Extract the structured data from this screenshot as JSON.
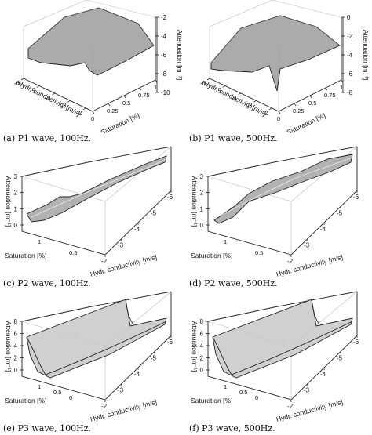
{
  "chart_data": [
    {
      "type": "surface3d",
      "caption": "(a)  P1 wave, 100Hz.",
      "axes": {
        "conductivity": {
          "label": "Hydr. conductivity [m/s]",
          "ticks": [
            "-6",
            "-5",
            "-4",
            "-3",
            "-2"
          ]
        },
        "saturation": {
          "label": "Saturation [%]",
          "ticks": [
            "0",
            "0.25",
            "0.5",
            "0.75",
            "1"
          ]
        },
        "attenuation": {
          "label": "Attenuation [m⁻¹]",
          "ticks": [
            "-2",
            "-4",
            "-6",
            "-8",
            "-10"
          ],
          "range": [
            -10,
            -2
          ]
        }
      }
    },
    {
      "type": "surface3d",
      "caption": "(b)  P1 wave, 500Hz.",
      "axes": {
        "conductivity": {
          "label": "Hydr. conductivity [m/s]",
          "ticks": [
            "-6",
            "-5",
            "-4",
            "-3",
            "-2"
          ]
        },
        "saturation": {
          "label": "Saturation [%]",
          "ticks": [
            "0",
            "0.25",
            "0.5",
            "0.75",
            "1"
          ]
        },
        "attenuation": {
          "label": "Attenuation [m⁻¹]",
          "ticks": [
            "0",
            "-2",
            "-4",
            "-6",
            "-8"
          ],
          "range": [
            -8,
            0
          ]
        }
      }
    },
    {
      "type": "surface3d",
      "caption": "(c)  P2 wave, 100Hz.",
      "axes": {
        "conductivity": {
          "label": "Hydr. conductivity [m/s]",
          "ticks": [
            "-2",
            "-3",
            "-4",
            "-5",
            "-6"
          ]
        },
        "saturation": {
          "label": "Saturation [%]",
          "ticks": [
            "1",
            "0.5"
          ]
        },
        "attenuation": {
          "label": "Attenuation [m⁻¹]",
          "ticks": [
            "3",
            "2",
            "1",
            "0"
          ],
          "range": [
            0,
            3
          ]
        }
      }
    },
    {
      "type": "surface3d",
      "caption": "(d)  P2 wave, 500Hz.",
      "axes": {
        "conductivity": {
          "label": "Hydr. conductivity [m/s]",
          "ticks": [
            "-2",
            "-3",
            "-4",
            "-5",
            "-6"
          ]
        },
        "saturation": {
          "label": "Saturation [%]",
          "ticks": [
            "1",
            "0.5"
          ]
        },
        "attenuation": {
          "label": "Attenuation [m⁻¹]",
          "ticks": [
            "3",
            "2",
            "1",
            "0"
          ],
          "range": [
            0,
            3
          ]
        }
      }
    },
    {
      "type": "surface3d",
      "caption": "(e)  P3 wave, 100Hz.",
      "axes": {
        "conductivity": {
          "label": "Hydr. conductivity [m/s]",
          "ticks": [
            "-2",
            "-3",
            "-4",
            "-5",
            "-6"
          ]
        },
        "saturation": {
          "label": "Saturation [%]",
          "ticks": [
            "1",
            "0.5",
            "0"
          ]
        },
        "attenuation": {
          "label": "Attenuation [m⁻¹]",
          "ticks": [
            "8",
            "6",
            "4",
            "2",
            "0"
          ],
          "range": [
            0,
            8
          ]
        }
      }
    },
    {
      "type": "surface3d",
      "caption": "(f)  P3 wave, 500Hz.",
      "axes": {
        "conductivity": {
          "label": "Hydr. conductivity [m/s]",
          "ticks": [
            "-2",
            "-3",
            "-4",
            "-5",
            "-6"
          ]
        },
        "saturation": {
          "label": "Saturation [%]",
          "ticks": [
            "1",
            "0.5",
            "0"
          ]
        },
        "attenuation": {
          "label": "Attenuation [m⁻¹]",
          "ticks": [
            "8",
            "6",
            "4",
            "2",
            "0"
          ],
          "range": [
            0,
            8
          ]
        }
      }
    }
  ]
}
